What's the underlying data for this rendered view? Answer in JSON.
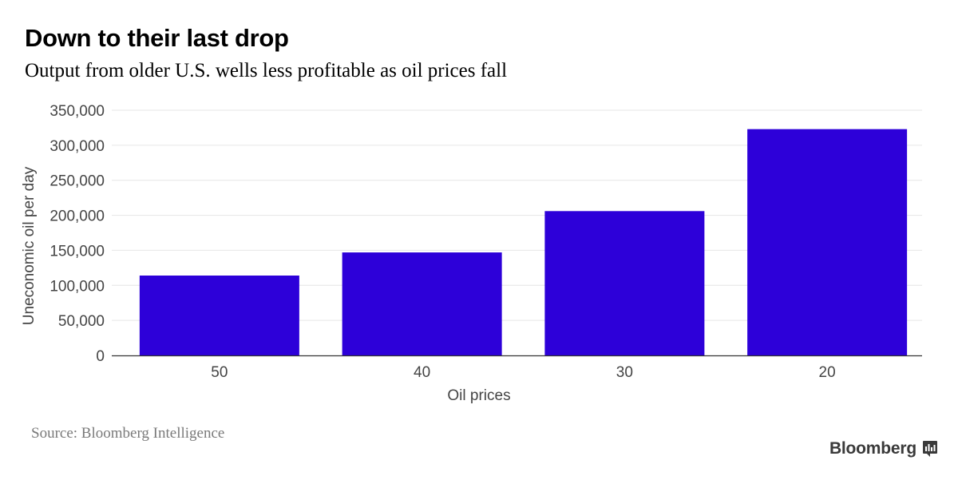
{
  "header": {
    "title": "Down to their last drop",
    "subtitle": "Output from older U.S. wells less profitable as oil prices fall"
  },
  "footer": {
    "source": "Source: Bloomberg Intelligence",
    "brand": "Bloomberg",
    "brand_icon": "bloomberg-chart-icon"
  },
  "colors": {
    "bar": "#2d00d9",
    "grid": "#e6e6e6",
    "axis": "#333333",
    "tick_text": "#444444"
  },
  "chart_data": {
    "type": "bar",
    "title": "Down to their last drop",
    "subtitle": "Output from older U.S. wells less profitable as oil prices fall",
    "xlabel": "Oil prices",
    "ylabel": "Uneconomic oil per day",
    "categories": [
      "50",
      "40",
      "30",
      "20"
    ],
    "values": [
      114000,
      147000,
      206000,
      323000
    ],
    "ylim": [
      0,
      350000
    ],
    "yticks": [
      0,
      50000,
      100000,
      150000,
      200000,
      250000,
      300000,
      350000
    ],
    "ytick_labels": [
      "0",
      "50,000",
      "100,000",
      "150,000",
      "200,000",
      "250,000",
      "300,000",
      "350,000"
    ],
    "grid": true,
    "legend": "none"
  }
}
